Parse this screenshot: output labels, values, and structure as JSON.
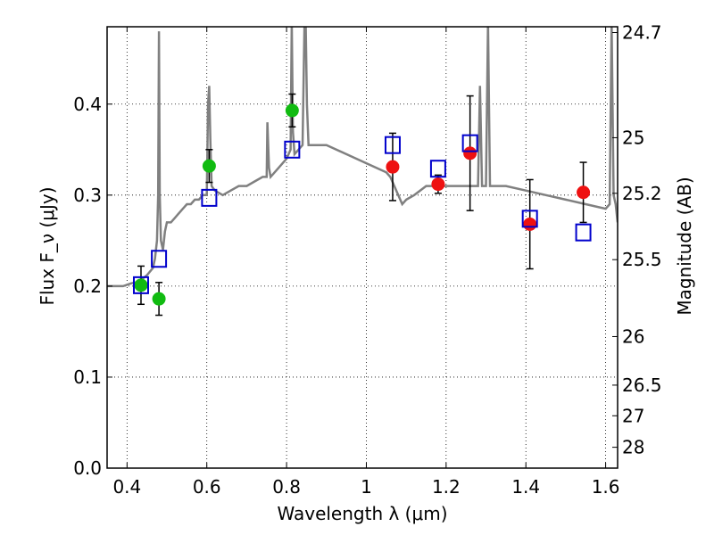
{
  "chart_data": {
    "type": "scatter",
    "xlabel": "Wavelength λ (μm)",
    "ylabel": "Flux F_ν (μJy)",
    "ylabel_right": "Magnitude (AB)",
    "xlim": [
      0.35,
      1.63
    ],
    "ylim": [
      0.0,
      0.485
    ],
    "grid": true,
    "x_ticks": [
      "0.4",
      "0.6",
      "0.8",
      "1",
      "1.2",
      "1.4",
      "1.6"
    ],
    "x_tick_values": [
      0.4,
      0.6,
      0.8,
      1.0,
      1.2,
      1.4,
      1.6
    ],
    "y_ticks": [
      "0.0",
      "0.1",
      "0.2",
      "0.3",
      "0.4"
    ],
    "y_tick_values": [
      0.0,
      0.1,
      0.2,
      0.3,
      0.4
    ],
    "right_ticks": [
      "24.7",
      "25",
      "25.2",
      "25.5",
      "26",
      "26.5",
      "27",
      "28"
    ],
    "right_tick_values": [
      24.7,
      25.0,
      25.2,
      25.5,
      26.0,
      26.5,
      27.0,
      28.0
    ],
    "colors": {
      "model": "#808080",
      "green": "#11bb11",
      "red": "#ee1111",
      "blue": "#0000cc",
      "error": "#000000"
    },
    "series": [
      {
        "marker": "circle",
        "color": "green",
        "points": [
          {
            "x": 0.435,
            "y": 0.201,
            "yerr": 0.021
          },
          {
            "x": 0.48,
            "y": 0.186,
            "yerr": 0.018
          },
          {
            "x": 0.606,
            "y": 0.332,
            "yerr": 0.018
          },
          {
            "x": 0.814,
            "y": 0.393,
            "yerr": 0.018
          }
        ]
      },
      {
        "marker": "circle",
        "color": "red",
        "points": [
          {
            "x": 1.066,
            "y": 0.331,
            "yerr": 0.037
          },
          {
            "x": 1.18,
            "y": 0.312,
            "yerr": 0.01
          },
          {
            "x": 1.26,
            "y": 0.346,
            "yerr": 0.063
          },
          {
            "x": 1.41,
            "y": 0.268,
            "yerr": 0.049
          },
          {
            "x": 1.544,
            "y": 0.303,
            "yerr": 0.033
          }
        ]
      },
      {
        "marker": "open-square",
        "color": "blue",
        "points": [
          {
            "x": 0.435,
            "y": 0.201
          },
          {
            "x": 0.48,
            "y": 0.23
          },
          {
            "x": 0.606,
            "y": 0.297
          },
          {
            "x": 0.814,
            "y": 0.35
          },
          {
            "x": 1.066,
            "y": 0.355
          },
          {
            "x": 1.18,
            "y": 0.329
          },
          {
            "x": 1.26,
            "y": 0.357
          },
          {
            "x": 1.41,
            "y": 0.274
          },
          {
            "x": 1.544,
            "y": 0.259
          }
        ]
      }
    ],
    "model_spectrum": {
      "x": [
        0.35,
        0.37,
        0.39,
        0.41,
        0.43,
        0.45,
        0.465,
        0.47,
        0.475,
        0.478,
        0.48,
        0.482,
        0.485,
        0.49,
        0.495,
        0.5,
        0.51,
        0.52,
        0.53,
        0.54,
        0.55,
        0.56,
        0.57,
        0.58,
        0.59,
        0.6,
        0.603,
        0.606,
        0.609,
        0.612,
        0.62,
        0.64,
        0.66,
        0.68,
        0.7,
        0.72,
        0.74,
        0.75,
        0.752,
        0.756,
        0.76,
        0.78,
        0.8,
        0.81,
        0.813,
        0.816,
        0.82,
        0.83,
        0.84,
        0.845,
        0.848,
        0.851,
        0.855,
        0.87,
        0.9,
        0.95,
        1.0,
        1.05,
        1.06,
        1.07,
        1.08,
        1.09,
        1.1,
        1.12,
        1.15,
        1.2,
        1.25,
        1.28,
        1.285,
        1.29,
        1.3,
        1.305,
        1.31,
        1.35,
        1.4,
        1.45,
        1.5,
        1.55,
        1.6,
        1.61,
        1.615,
        1.62,
        1.625,
        1.63
      ],
      "y": [
        0.2,
        0.2,
        0.2,
        0.203,
        0.205,
        0.212,
        0.22,
        0.23,
        0.25,
        0.3,
        0.48,
        0.3,
        0.25,
        0.24,
        0.26,
        0.27,
        0.27,
        0.275,
        0.28,
        0.285,
        0.29,
        0.29,
        0.295,
        0.295,
        0.3,
        0.3,
        0.4,
        0.42,
        0.36,
        0.31,
        0.305,
        0.3,
        0.305,
        0.31,
        0.31,
        0.315,
        0.32,
        0.32,
        0.38,
        0.33,
        0.32,
        0.33,
        0.34,
        0.35,
        0.49,
        0.37,
        0.345,
        0.35,
        0.355,
        0.49,
        0.49,
        0.4,
        0.355,
        0.355,
        0.355,
        0.345,
        0.335,
        0.325,
        0.32,
        0.31,
        0.3,
        0.29,
        0.295,
        0.3,
        0.31,
        0.31,
        0.31,
        0.31,
        0.42,
        0.31,
        0.31,
        0.49,
        0.31,
        0.31,
        0.305,
        0.3,
        0.295,
        0.29,
        0.285,
        0.29,
        0.49,
        0.3,
        0.29,
        0.27
      ]
    }
  }
}
